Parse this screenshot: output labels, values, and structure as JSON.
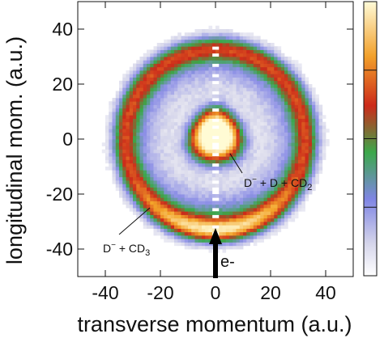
{
  "chart_data": {
    "type": "heatmap",
    "title": "",
    "xlabel": "transverse momentum (a.u.)",
    "ylabel": "longitudinal mom. (a.u.)",
    "xlim": [
      -50,
      50
    ],
    "ylim": [
      -50,
      50
    ],
    "x_ticks": [
      "-40",
      "-20",
      "0",
      "20",
      "40"
    ],
    "y_ticks": [
      "40",
      "20",
      "0",
      "-20",
      "-40"
    ],
    "x_tick_values": [
      -40,
      -20,
      0,
      20,
      40
    ],
    "y_tick_values": [
      40,
      20,
      0,
      -20,
      -40
    ],
    "colorscale": [
      "#ffffff",
      "#dcdcec",
      "#8c8fe6",
      "#3aa84b",
      "#cc2a1a",
      "#f3a52a",
      "#fffbd4"
    ],
    "colorbar_ticks": [
      0.25,
      0.5,
      0.75
    ],
    "features": [
      {
        "name": "outer ring",
        "radius": 33,
        "width": 4.5,
        "intensity": 0.5,
        "bottom_enhancement": 0.35
      },
      {
        "name": "central blob",
        "center": [
          0,
          1.5
        ],
        "radius": 9,
        "intensity": 1.0
      }
    ],
    "annotations": [
      {
        "text_main": "D",
        "sup": "−",
        "text_rest": " + D + CD",
        "sub": "2",
        "target": [
          5,
          -3
        ]
      },
      {
        "text_main": "D",
        "sup": "−",
        "text_rest": " + CD",
        "sub": "3",
        "target": [
          -28,
          -25
        ]
      }
    ],
    "beam_label": "e-"
  }
}
